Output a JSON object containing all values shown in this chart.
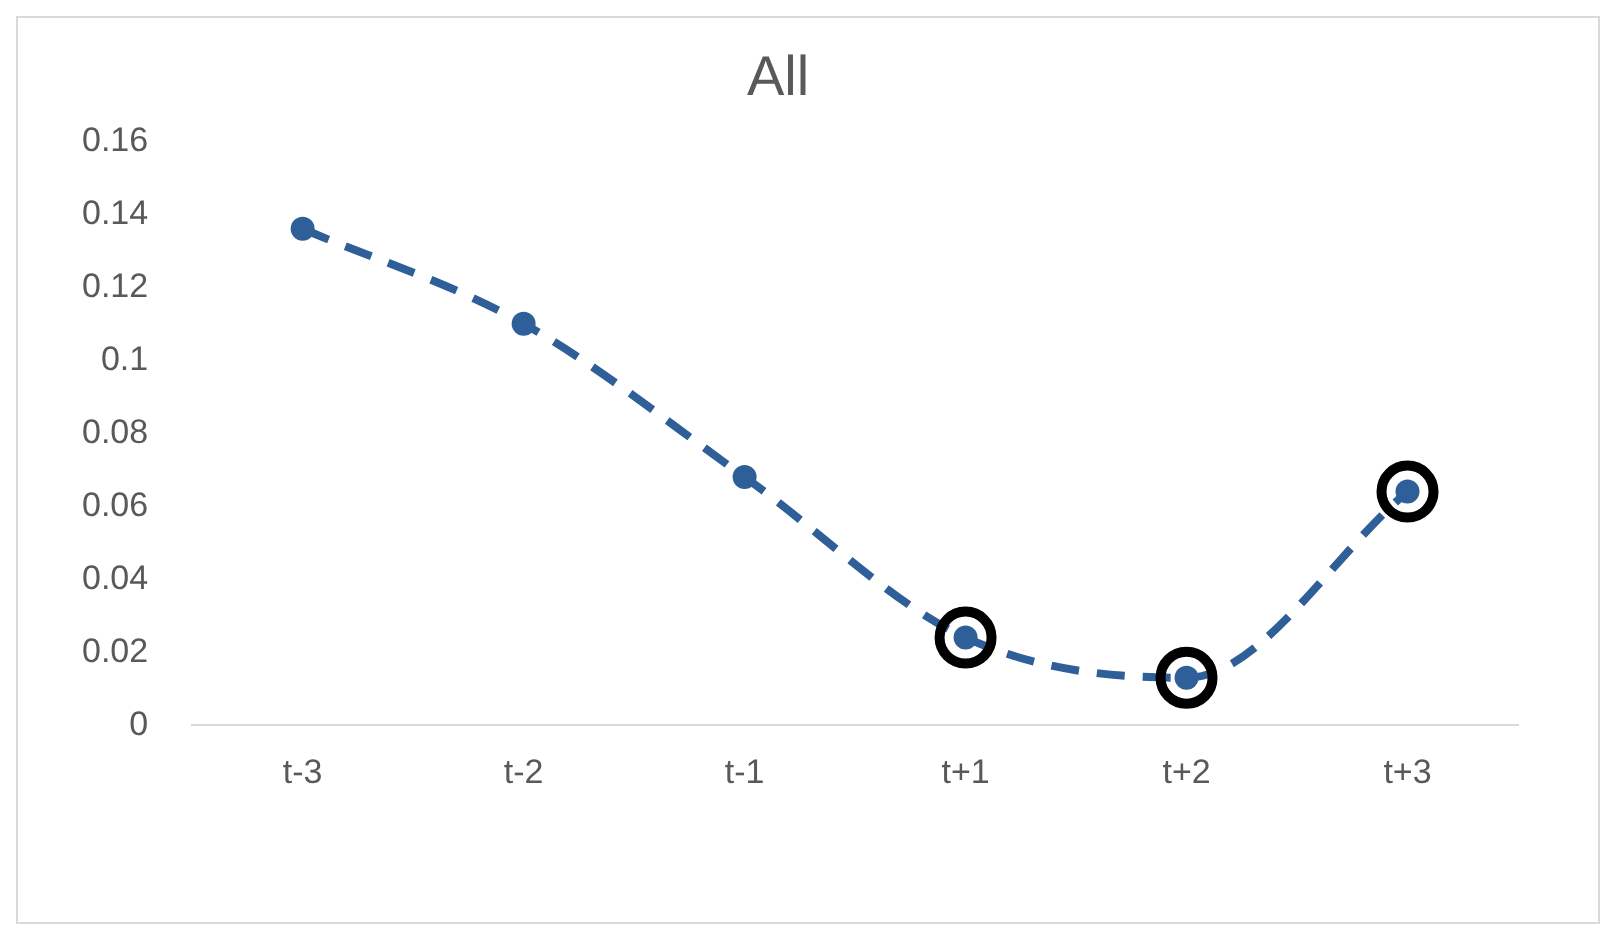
{
  "chart_data": {
    "type": "line",
    "title": "All",
    "categories": [
      "t-3",
      "t-2",
      "t-1",
      "t+1",
      "t+2",
      "t+3"
    ],
    "series": [
      {
        "color": "#2f5f98",
        "values": [
          0.136,
          0.11,
          0.068,
          0.024,
          0.013,
          0.064
        ],
        "marker": "circle",
        "line_style": "dashed"
      },
      {
        "type": "scatter",
        "color": "#000000",
        "values": [
          null,
          null,
          null,
          0.024,
          0.013,
          0.064
        ],
        "marker": "circle"
      }
    ],
    "ylim": [
      0,
      0.16
    ],
    "yticks": [
      0,
      0.02,
      0.04,
      0.06,
      0.08,
      0.1,
      0.12,
      0.14,
      0.16
    ],
    "grid": false,
    "legend": false
  }
}
